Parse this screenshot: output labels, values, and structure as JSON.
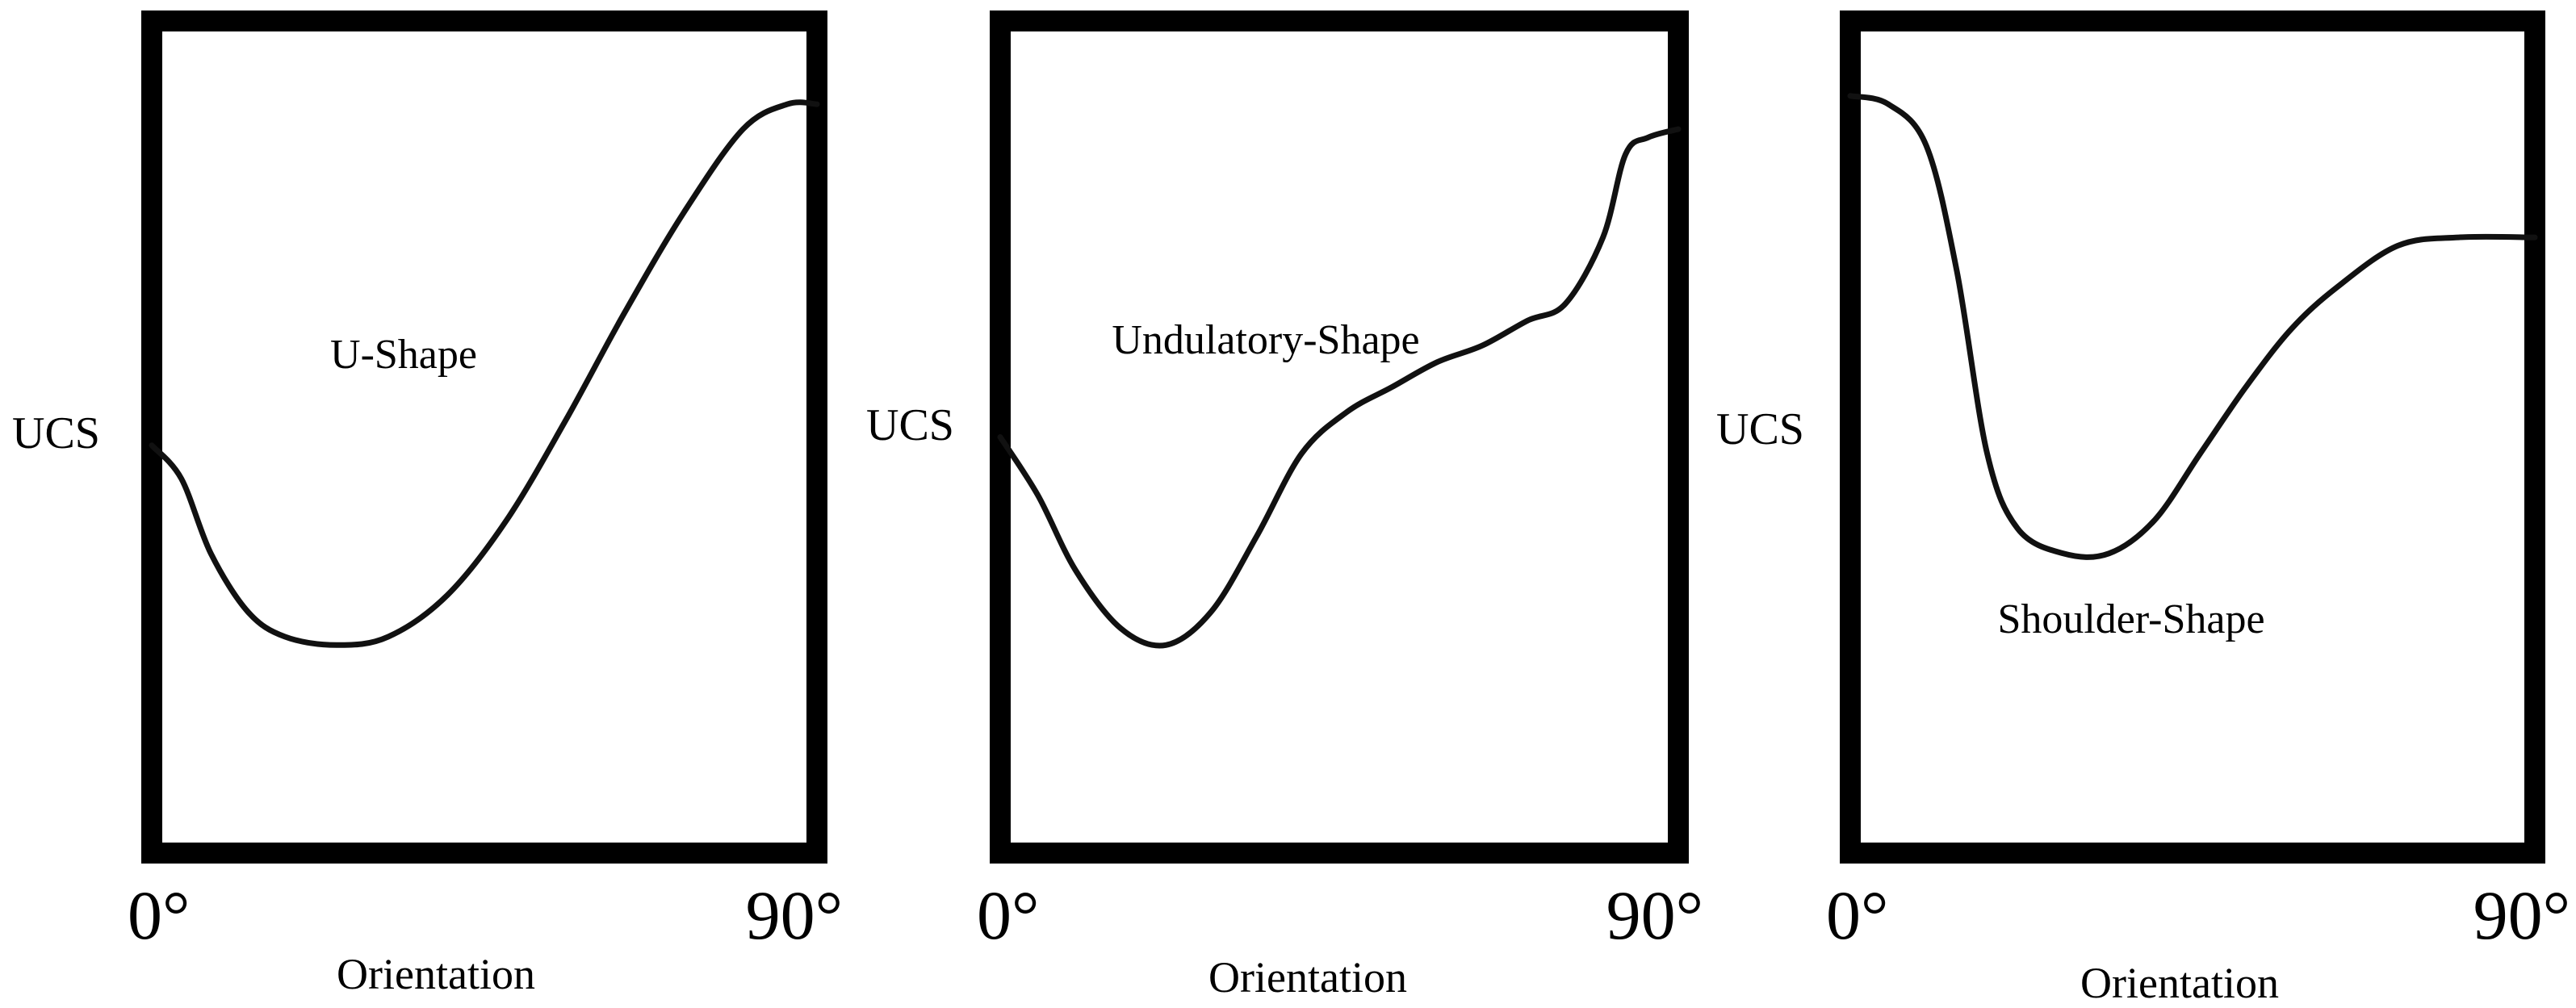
{
  "chart_data": [
    {
      "type": "line",
      "title": "",
      "shape_label": "U-Shape",
      "xlabel": "Orientation",
      "ylabel": "UCS",
      "x_unit": "°",
      "xlim": [
        0,
        90
      ],
      "ylim": [
        0,
        1
      ],
      "xticks": [
        0,
        90
      ],
      "tick_labels": [
        "0°",
        "90°"
      ],
      "grid": false,
      "series": [
        {
          "name": "U-Shape",
          "x": [
            0,
            4,
            8,
            13,
            18,
            25,
            32,
            40,
            48,
            56,
            64,
            72,
            80,
            86,
            90
          ],
          "y": [
            0.49,
            0.45,
            0.36,
            0.29,
            0.26,
            0.25,
            0.26,
            0.31,
            0.4,
            0.52,
            0.65,
            0.77,
            0.87,
            0.9,
            0.9
          ]
        }
      ]
    },
    {
      "type": "line",
      "title": "",
      "shape_label": "Undulatory-Shape",
      "xlabel": "Orientation",
      "ylabel": "UCS",
      "x_unit": "°",
      "xlim": [
        0,
        90
      ],
      "ylim": [
        0,
        1
      ],
      "xticks": [
        0,
        90
      ],
      "tick_labels": [
        "0°",
        "90°"
      ],
      "grid": false,
      "series": [
        {
          "name": "Undulatory-Shape",
          "x": [
            0,
            5,
            10,
            16,
            22,
            28,
            34,
            40,
            46,
            52,
            58,
            64,
            70,
            75,
            80,
            83,
            86,
            90
          ],
          "y": [
            0.5,
            0.43,
            0.34,
            0.27,
            0.25,
            0.29,
            0.38,
            0.48,
            0.53,
            0.56,
            0.59,
            0.61,
            0.64,
            0.66,
            0.74,
            0.84,
            0.86,
            0.87
          ]
        }
      ]
    },
    {
      "type": "line",
      "title": "",
      "shape_label": "Shoulder-Shape",
      "xlabel": "Orientation",
      "ylabel": "UCS",
      "x_unit": "°",
      "xlim": [
        0,
        90
      ],
      "ylim": [
        0,
        1
      ],
      "xticks": [
        0,
        90
      ],
      "tick_labels": [
        "0°",
        "90°"
      ],
      "grid": false,
      "series": [
        {
          "name": "Shoulder-Shape",
          "x": [
            0,
            5,
            10,
            14,
            18,
            22,
            28,
            34,
            40,
            46,
            52,
            58,
            64,
            72,
            80,
            90
          ],
          "y": [
            0.91,
            0.9,
            0.85,
            0.7,
            0.48,
            0.39,
            0.36,
            0.36,
            0.4,
            0.48,
            0.56,
            0.63,
            0.68,
            0.73,
            0.74,
            0.74
          ]
        }
      ]
    }
  ]
}
